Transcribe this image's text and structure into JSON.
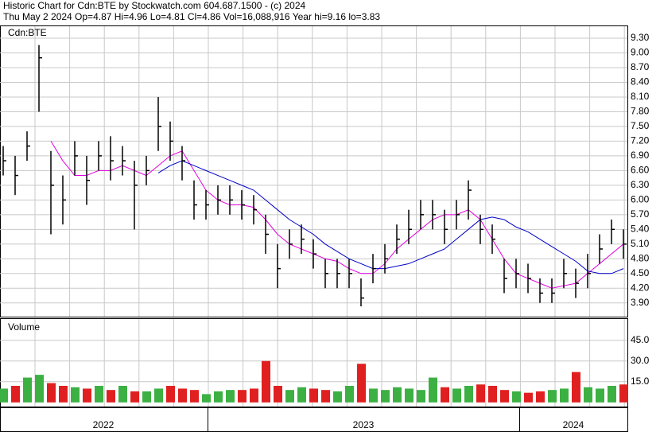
{
  "chart_data": {
    "type": "ohlc",
    "title": "Historic Chart for Cdn:BTE  by Stockwatch.com 604.687.1500 - (c) 2024",
    "subtitle": "Thu May  2 2024  Op=4.87  Hi=4.96  Lo=4.81  Cl=4.86  Vol=16,088,916  Year hi=9.16  lo=3.83",
    "symbol_label": "Cdn:BTE",
    "color": "#000000",
    "high": [
      7.1,
      6.9,
      7.4,
      9.16,
      7.0,
      6.5,
      7.2,
      6.9,
      7.2,
      7.3,
      7.1,
      6.8,
      6.9,
      8.1,
      7.6,
      7.1,
      6.4,
      6.2,
      6.3,
      6.3,
      6.2,
      6.1,
      5.7,
      5.1,
      5.4,
      5.5,
      5.2,
      4.8,
      4.8,
      4.8,
      4.4,
      4.9,
      5.1,
      5.5,
      5.8,
      6.0,
      6.0,
      5.8,
      6.0,
      6.4,
      5.7,
      5.5,
      4.8,
      4.8,
      4.7,
      4.4,
      4.4,
      4.8,
      4.6,
      4.9,
      5.3,
      5.6,
      5.4
    ],
    "low": [
      6.5,
      6.1,
      6.8,
      7.8,
      5.3,
      5.5,
      6.5,
      5.9,
      6.6,
      6.4,
      6.5,
      5.4,
      6.3,
      7.0,
      6.8,
      6.4,
      5.6,
      5.6,
      5.7,
      5.7,
      5.6,
      5.5,
      4.9,
      4.2,
      4.8,
      4.9,
      4.6,
      4.2,
      4.2,
      4.2,
      3.83,
      4.3,
      4.5,
      4.9,
      5.1,
      5.4,
      5.4,
      5.1,
      5.4,
      5.6,
      5.1,
      4.9,
      4.1,
      4.2,
      4.1,
      3.9,
      3.9,
      4.2,
      4.0,
      4.2,
      4.7,
      5.1,
      4.8
    ],
    "close": [
      6.8,
      6.5,
      7.1,
      8.9,
      6.3,
      6.0,
      6.9,
      6.4,
      6.9,
      6.8,
      6.8,
      6.3,
      6.6,
      7.5,
      7.2,
      6.8,
      5.9,
      5.9,
      6.0,
      6.0,
      5.9,
      5.8,
      5.3,
      4.6,
      5.1,
      5.2,
      4.9,
      4.5,
      4.5,
      4.5,
      4.0,
      4.6,
      4.8,
      5.2,
      5.4,
      5.7,
      5.7,
      5.4,
      5.7,
      6.2,
      5.4,
      5.2,
      4.4,
      4.5,
      4.4,
      4.1,
      4.1,
      4.5,
      4.3,
      4.5,
      5.0,
      5.4,
      5.1
    ],
    "moving_averages": [
      {
        "color": "#e000e0",
        "values": [
          null,
          null,
          null,
          null,
          7.2,
          6.8,
          6.5,
          6.5,
          6.6,
          6.6,
          6.7,
          6.6,
          6.5,
          6.7,
          6.9,
          7.0,
          6.6,
          6.2,
          6.0,
          5.9,
          5.9,
          5.85,
          5.6,
          5.3,
          5.1,
          5.0,
          4.9,
          4.8,
          4.75,
          4.6,
          4.5,
          4.5,
          4.7,
          5.0,
          5.2,
          5.4,
          5.6,
          5.7,
          5.7,
          5.8,
          5.6,
          5.2,
          4.8,
          4.5,
          4.4,
          4.3,
          4.2,
          4.25,
          4.3,
          4.5,
          4.7,
          4.9,
          5.1
        ]
      },
      {
        "color": "#0000c8",
        "values": [
          null,
          null,
          null,
          null,
          null,
          null,
          null,
          null,
          null,
          null,
          null,
          null,
          null,
          6.55,
          6.7,
          6.8,
          6.7,
          6.6,
          6.5,
          6.4,
          6.3,
          6.2,
          6.0,
          5.8,
          5.6,
          5.45,
          5.3,
          5.1,
          4.95,
          4.8,
          4.7,
          4.6,
          4.6,
          4.65,
          4.7,
          4.8,
          4.9,
          5.0,
          5.2,
          5.4,
          5.6,
          5.65,
          5.6,
          5.45,
          5.35,
          5.2,
          5.05,
          4.9,
          4.75,
          4.55,
          4.5,
          4.5,
          4.6
        ]
      }
    ],
    "ylim": [
      3.62,
      9.56
    ],
    "yticks": [
      {
        "value": 3.9,
        "label": "3.90"
      },
      {
        "value": 4.2,
        "label": "4.20"
      },
      {
        "value": 4.5,
        "label": "4.50"
      },
      {
        "value": 4.8,
        "label": "4.80"
      },
      {
        "value": 5.1,
        "label": "5.10"
      },
      {
        "value": 5.4,
        "label": "5.40"
      },
      {
        "value": 5.7,
        "label": "5.70"
      },
      {
        "value": 6.0,
        "label": "6.00"
      },
      {
        "value": 6.3,
        "label": "6.30"
      },
      {
        "value": 6.6,
        "label": "6.60"
      },
      {
        "value": 6.9,
        "label": "6.90"
      },
      {
        "value": 7.2,
        "label": "7.20"
      },
      {
        "value": 7.5,
        "label": "7.50"
      },
      {
        "value": 7.8,
        "label": "7.80"
      },
      {
        "value": 8.1,
        "label": "8.10"
      },
      {
        "value": 8.4,
        "label": "8.40"
      },
      {
        "value": 8.7,
        "label": "8.70"
      },
      {
        "value": 9.0,
        "label": "9.00"
      },
      {
        "value": 9.3,
        "label": "9.30"
      }
    ],
    "volume": {
      "title": "Volume",
      "up_color": "#3cb043",
      "down_color": "#e02020",
      "values": [
        10,
        12,
        18,
        20,
        14,
        12,
        11,
        10,
        12,
        9,
        12,
        8,
        8,
        10,
        12,
        10,
        9,
        6,
        8,
        9,
        9,
        10,
        30,
        12,
        9,
        11,
        10,
        9,
        8,
        12,
        28,
        10,
        9,
        11,
        10,
        9,
        18,
        11,
        10,
        12,
        13,
        12,
        9,
        8,
        7,
        8,
        9,
        10,
        22,
        11,
        10,
        12,
        13
      ],
      "ylim": [
        -3,
        61
      ],
      "yticks": [
        {
          "value": 15,
          "label": "15.0"
        },
        {
          "value": 30,
          "label": "30.0"
        },
        {
          "value": 45,
          "label": "45.0"
        }
      ]
    },
    "years": [
      "2022",
      "2023",
      "2024"
    ],
    "grid": true
  }
}
